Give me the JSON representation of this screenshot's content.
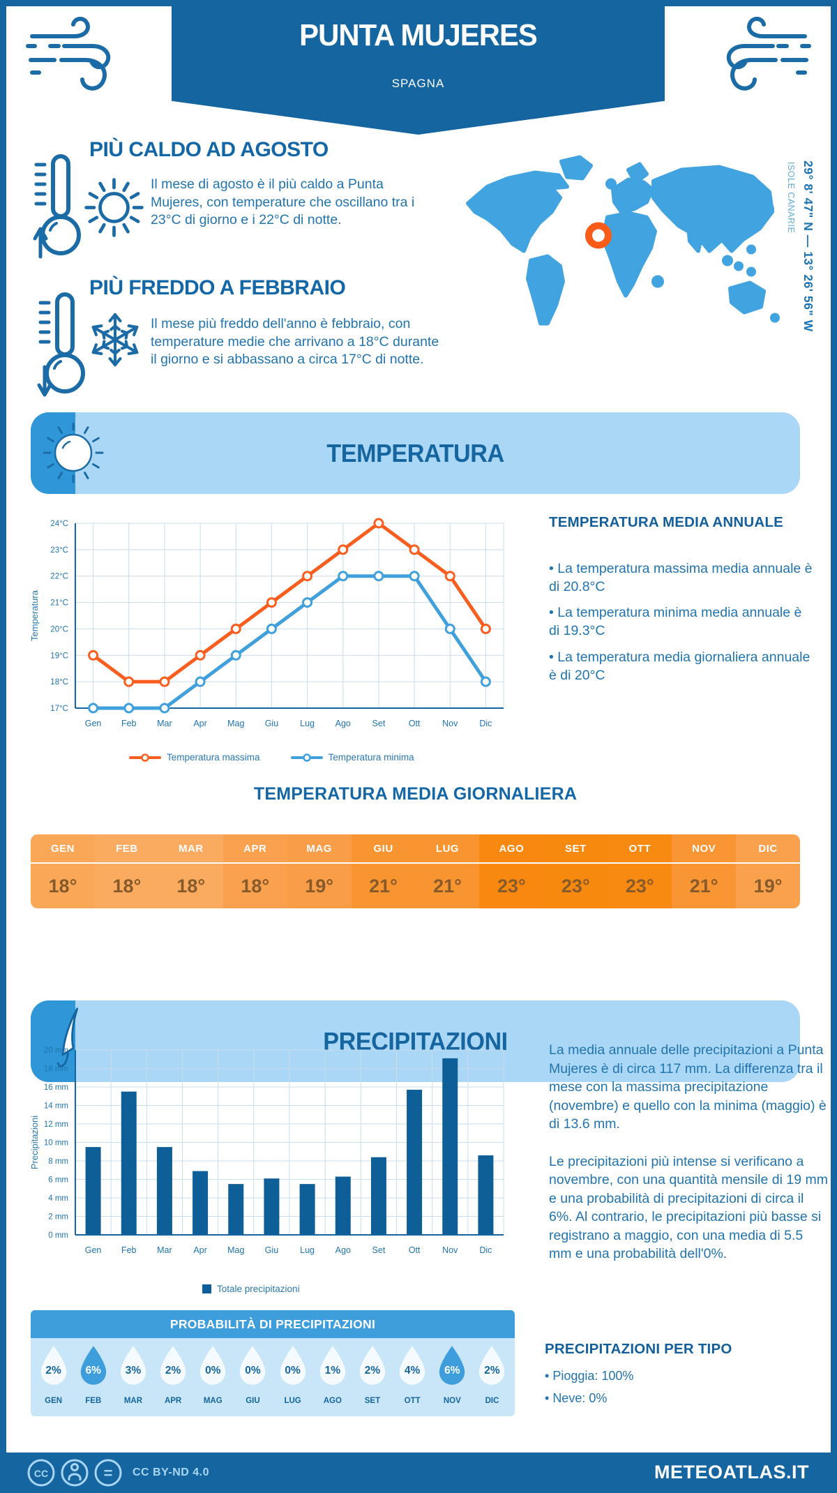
{
  "header": {
    "title": "PUNTA MUJERES",
    "subtitle": "SPAGNA"
  },
  "highlights": {
    "hot": {
      "title": "PIÙ CALDO AD AGOSTO",
      "text": "Il mese di agosto è il più caldo a Punta Mujeres, con temperature che oscillano tra i 23°C di giorno e i 22°C di notte."
    },
    "cold": {
      "title": "PIÙ FREDDO A FEBBRAIO",
      "text": "Il mese più freddo dell'anno è febbraio, con temperature medie che arrivano a 18°C durante il giorno e si abbassano a circa 17°C di notte."
    }
  },
  "map": {
    "coordinates": "29° 8' 47\" N — 13° 26' 56\" W",
    "region": "ISOLE CANARIE"
  },
  "temperature": {
    "banner": "TEMPERATURA",
    "annual_title": "TEMPERATURA MEDIA ANNUALE",
    "annual_bullets": [
      "La temperatura massima media annuale è di 20.8°C",
      "La temperatura minima media annuale è di 19.3°C",
      "La temperatura media giornaliera annuale è di 20°C"
    ],
    "daily_title": "TEMPERATURA MEDIA GIORNALIERA",
    "table": {
      "months": [
        "GEN",
        "FEB",
        "MAR",
        "APR",
        "MAG",
        "GIU",
        "LUG",
        "AGO",
        "SET",
        "OTT",
        "NOV",
        "DIC"
      ],
      "values": [
        "18°",
        "18°",
        "18°",
        "18°",
        "19°",
        "21°",
        "21°",
        "23°",
        "23°",
        "23°",
        "21°",
        "19°"
      ],
      "colors": [
        "#faa758",
        "#fbab60",
        "#fbab60",
        "#faa150",
        "#fa9d48",
        "#f99530",
        "#f99530",
        "#f8880f",
        "#f8890f",
        "#f88a12",
        "#f99532",
        "#faa14d"
      ]
    }
  },
  "precipitation": {
    "banner": "PRECIPITAZIONI",
    "paragraphs": [
      "La media annuale delle precipitazioni a Punta Mujeres è di circa 117 mm. La differenza tra il mese con la massima precipitazione (novembre) e quello con la minima (maggio) è di 13.6 mm.",
      "Le precipitazioni più intense si verificano a novembre, con una quantità mensile di 19 mm e una probabilità di precipitazioni di circa il 6%. Al contrario, le precipitazioni più basse si registrano a maggio, con una media di 5.5 mm e una probabilità dell'0%."
    ],
    "probability": {
      "title": "PROBABILITÀ DI PRECIPITAZIONI",
      "months": [
        "GEN",
        "FEB",
        "MAR",
        "APR",
        "MAG",
        "GIU",
        "LUG",
        "AGO",
        "SET",
        "OTT",
        "NOV",
        "DIC"
      ],
      "values": [
        "2%",
        "6%",
        "3%",
        "2%",
        "0%",
        "0%",
        "0%",
        "1%",
        "2%",
        "4%",
        "6%",
        "2%"
      ],
      "highlighted": [
        false,
        true,
        false,
        false,
        false,
        false,
        false,
        false,
        false,
        false,
        true,
        false
      ]
    },
    "by_type": {
      "title": "PRECIPITAZIONI PER TIPO",
      "items": [
        "Pioggia: 100%",
        "Neve: 0%"
      ]
    }
  },
  "footer": {
    "license": "CC BY-ND 4.0",
    "brand": "METEOATLAS.IT"
  },
  "colors": {
    "navy": "#1565a0",
    "band_bg": "#abd7f6",
    "band_accent": "#2f97d7",
    "map_land": "#41a4e0",
    "marker": "#f95b19",
    "grid": "#c9dcec",
    "axis_text": "#1f74ae",
    "text": "#2979b0",
    "bar": "#0e5e98",
    "drop_bg": "#f4fafe",
    "drop_hl": "#3d9edb",
    "prob_body": "#c9e6f8"
  },
  "chart_data": [
    {
      "type": "line",
      "title": "",
      "x": [
        "Gen",
        "Feb",
        "Mar",
        "Apr",
        "Mag",
        "Giu",
        "Lug",
        "Ago",
        "Set",
        "Ott",
        "Nov",
        "Dic"
      ],
      "series": [
        {
          "name": "Temperatura massima",
          "color": "#fa5e1f",
          "values": [
            19,
            18,
            18,
            19,
            20,
            21,
            22,
            23,
            24,
            23,
            22,
            20
          ]
        },
        {
          "name": "Temperatura minima",
          "color": "#3fa0dc",
          "values": [
            17,
            17,
            17,
            18,
            19,
            20,
            21,
            22,
            22,
            22,
            20,
            18
          ]
        }
      ],
      "ylabel": "Temperatura",
      "ylim": [
        17,
        24
      ],
      "ytick_step": 1,
      "ytick_suffix": "°C",
      "grid": true,
      "legend_position": "bottom"
    },
    {
      "type": "bar",
      "title": "",
      "categories": [
        "Gen",
        "Feb",
        "Mar",
        "Apr",
        "Mag",
        "Giu",
        "Lug",
        "Ago",
        "Set",
        "Ott",
        "Nov",
        "Dic"
      ],
      "values": [
        9.5,
        15.5,
        9.5,
        6.9,
        5.5,
        6.1,
        5.5,
        6.3,
        8.4,
        15.7,
        19.1,
        8.6
      ],
      "ylabel": "Precipitazioni",
      "ylim": [
        0,
        20
      ],
      "ytick_step": 2,
      "ytick_suffix": " mm",
      "legend": "Totale precipitazioni",
      "bar_color": "#0e5e98",
      "grid": true,
      "legend_position": "bottom"
    }
  ]
}
